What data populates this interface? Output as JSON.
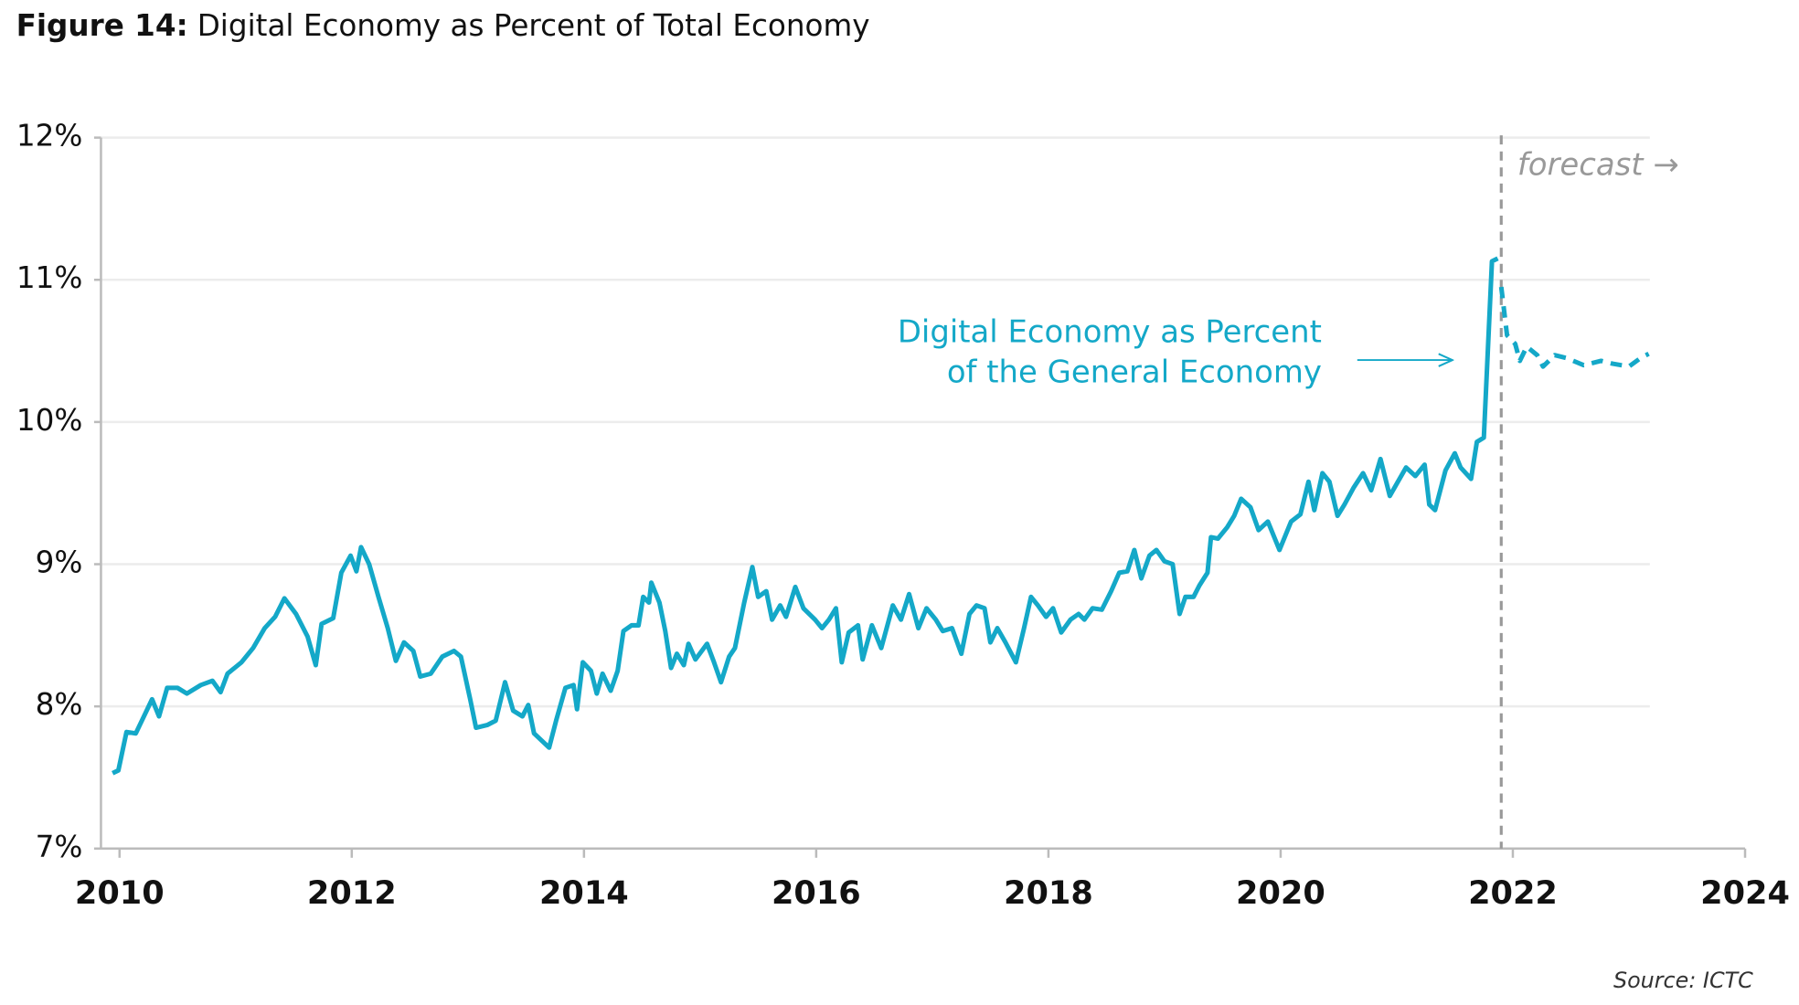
{
  "chart_data": {
    "type": "line",
    "figure_label": "Figure 14:",
    "title": "Digital Economy as Percent of Total Economy",
    "source": "Source: ICTC",
    "annotation_lines": [
      "Digital Economy as Percent",
      "of the General Economy"
    ],
    "forecast_line": {
      "x": 2021.9,
      "label": "forecast →"
    },
    "xlim": [
      2009.84,
      2024
    ],
    "xticks": [
      2010,
      2012,
      2014,
      2016,
      2018,
      2020,
      2022,
      2024
    ],
    "ylim": [
      7,
      12
    ],
    "yticks": [
      {
        "value": 7,
        "label": "7%"
      },
      {
        "value": 8,
        "label": "8%"
      },
      {
        "value": 9,
        "label": "9%"
      },
      {
        "value": 10,
        "label": "10%"
      },
      {
        "value": 11,
        "label": "11%"
      },
      {
        "value": 12,
        "label": "12%"
      }
    ],
    "grid": true,
    "series": [
      {
        "color": "#14a8c8",
        "dashed": false,
        "x": [
          2009.94,
          2009.99,
          2010.06,
          2010.14,
          2010.21,
          2010.28,
          2010.34,
          2010.41,
          2010.5,
          2010.58,
          2010.7,
          2010.8,
          2010.87,
          2010.93,
          2011.05,
          2011.15,
          2011.25,
          2011.34,
          2011.42,
          2011.52,
          2011.62,
          2011.69,
          2011.74,
          2011.84,
          2011.91,
          2011.99,
          2012.04,
          2012.08,
          2012.15,
          2012.23,
          2012.31,
          2012.38,
          2012.45,
          2012.53,
          2012.59,
          2012.68,
          2012.78,
          2012.88,
          2012.94,
          2013.02,
          2013.07,
          2013.17,
          2013.24,
          2013.32,
          2013.39,
          2013.47,
          2013.52,
          2013.57,
          2013.7,
          2013.76,
          2013.84,
          2013.91,
          2013.94,
          2013.99,
          2014.06,
          2014.11,
          2014.16,
          2014.23,
          2014.29,
          2014.34,
          2014.41,
          2014.47,
          2014.51,
          2014.56,
          2014.58,
          2014.65,
          2014.7,
          2014.75,
          2014.8,
          2014.86,
          2014.9,
          2014.96,
          2015.06,
          2015.12,
          2015.18,
          2015.25,
          2015.3,
          2015.38,
          2015.45,
          2015.5,
          2015.57,
          2015.62,
          2015.69,
          2015.74,
          2015.82,
          2015.89,
          2015.99,
          2016.05,
          2016.11,
          2016.17,
          2016.22,
          2016.28,
          2016.36,
          2016.4,
          2016.48,
          2016.56,
          2016.66,
          2016.73,
          2016.8,
          2016.88,
          2016.95,
          2017.03,
          2017.09,
          2017.17,
          2017.25,
          2017.32,
          2017.38,
          2017.45,
          2017.5,
          2017.56,
          2017.63,
          2017.72,
          2017.79,
          2017.85,
          2017.91,
          2017.98,
          2018.04,
          2018.11,
          2018.19,
          2018.26,
          2018.31,
          2018.38,
          2018.46,
          2018.54,
          2018.61,
          2018.68,
          2018.74,
          2018.8,
          2018.87,
          2018.93,
          2019.0,
          2019.07,
          2019.13,
          2019.18,
          2019.25,
          2019.3,
          2019.37,
          2019.4,
          2019.46,
          2019.54,
          2019.6,
          2019.66,
          2019.74,
          2019.81,
          2019.89,
          2019.99,
          2020.09,
          2020.17,
          2020.24,
          2020.29,
          2020.36,
          2020.42,
          2020.49,
          2020.55,
          2020.63,
          2020.71,
          2020.78,
          2020.86,
          2020.94,
          2021.01,
          2021.08,
          2021.16,
          2021.24,
          2021.28,
          2021.33,
          2021.42,
          2021.5,
          2021.55,
          2021.64,
          2021.69,
          2021.75,
          2021.82,
          2021.87
        ],
        "values": [
          7.53,
          7.55,
          7.82,
          7.81,
          7.93,
          8.05,
          7.93,
          8.13,
          8.13,
          8.09,
          8.15,
          8.18,
          8.1,
          8.23,
          8.31,
          8.41,
          8.55,
          8.63,
          8.76,
          8.65,
          8.49,
          8.29,
          8.58,
          8.62,
          8.94,
          9.06,
          8.95,
          9.12,
          9.0,
          8.77,
          8.55,
          8.32,
          8.45,
          8.39,
          8.21,
          8.23,
          8.35,
          8.39,
          8.35,
          8.05,
          7.85,
          7.87,
          7.9,
          8.17,
          7.97,
          7.93,
          8.01,
          7.81,
          7.71,
          7.9,
          8.13,
          8.15,
          7.98,
          8.31,
          8.25,
          8.09,
          8.23,
          8.11,
          8.25,
          8.53,
          8.57,
          8.57,
          8.77,
          8.73,
          8.87,
          8.73,
          8.53,
          8.27,
          8.37,
          8.29,
          8.44,
          8.33,
          8.44,
          8.31,
          8.17,
          8.35,
          8.41,
          8.73,
          8.98,
          8.77,
          8.81,
          8.61,
          8.71,
          8.63,
          8.84,
          8.69,
          8.61,
          8.55,
          8.61,
          8.69,
          8.31,
          8.52,
          8.57,
          8.33,
          8.57,
          8.41,
          8.71,
          8.61,
          8.79,
          8.55,
          8.69,
          8.61,
          8.53,
          8.55,
          8.37,
          8.65,
          8.71,
          8.69,
          8.45,
          8.55,
          8.45,
          8.31,
          8.55,
          8.77,
          8.71,
          8.63,
          8.69,
          8.52,
          8.61,
          8.65,
          8.61,
          8.69,
          8.68,
          8.81,
          8.94,
          8.95,
          9.1,
          8.9,
          9.06,
          9.1,
          9.02,
          9.0,
          8.65,
          8.77,
          8.77,
          8.85,
          8.94,
          9.19,
          9.18,
          9.26,
          9.34,
          9.46,
          9.4,
          9.24,
          9.3,
          9.1,
          9.3,
          9.35,
          9.58,
          9.38,
          9.64,
          9.58,
          9.34,
          9.42,
          9.54,
          9.64,
          9.52,
          9.74,
          9.48,
          9.58,
          9.68,
          9.62,
          9.7,
          9.42,
          9.38,
          9.66,
          9.78,
          9.68,
          9.6,
          9.86,
          9.89,
          11.13,
          11.15
        ]
      },
      {
        "color": "#14a8c8",
        "dashed": true,
        "x": [
          2021.9,
          2021.95,
          2022.02,
          2022.06,
          2022.12,
          2022.21,
          2022.26,
          2022.36,
          2022.46,
          2022.61,
          2022.76,
          2022.86,
          2023.0,
          2023.1,
          2023.17
        ],
        "values": [
          10.95,
          10.61,
          10.55,
          10.43,
          10.53,
          10.47,
          10.39,
          10.47,
          10.45,
          10.4,
          10.43,
          10.41,
          10.39,
          10.45,
          10.48
        ]
      }
    ]
  }
}
